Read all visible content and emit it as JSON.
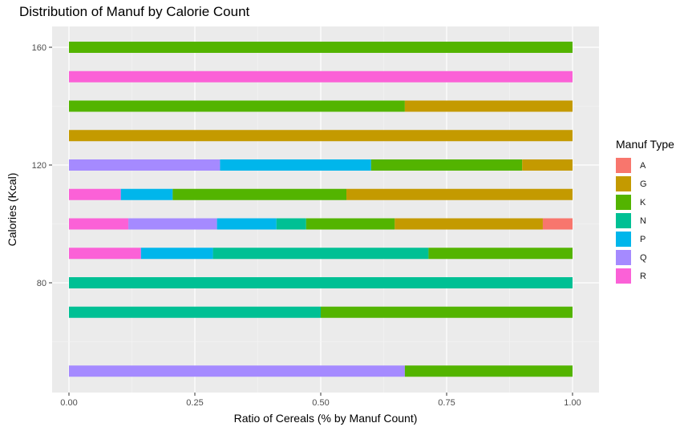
{
  "chart_data": {
    "type": "bar",
    "orientation": "horizontal",
    "stacked": true,
    "title": "Distribution of Manuf by Calorie Count",
    "xlabel": "Ratio of Cereals  (% by Manuf Count)",
    "ylabel": "Calories (Kcal)",
    "xlim": [
      0,
      1
    ],
    "ylim": [
      45,
      168
    ],
    "x_ticks": [
      0,
      0.25,
      0.5,
      0.75,
      1
    ],
    "x_tick_labels": [
      "0.00",
      "0.25",
      "0.50",
      "0.75",
      "1.00"
    ],
    "y_ticks": [
      80,
      120,
      160
    ],
    "y_tick_labels": [
      "80",
      "120",
      "160"
    ],
    "grid": true,
    "legend_position": "right",
    "legend_title": "Manuf Type",
    "categories": [
      "A",
      "G",
      "K",
      "N",
      "P",
      "Q",
      "R"
    ],
    "colors": {
      "A": "#F8766D",
      "G": "#C49A00",
      "K": "#53B400",
      "N": "#00C094",
      "P": "#00B6EB",
      "Q": "#A58AFF",
      "R": "#FB61D7"
    },
    "stack_order": [
      "R",
      "Q",
      "P",
      "N",
      "K",
      "G",
      "A"
    ],
    "bars": [
      {
        "calories": 50,
        "shares": {
          "Q": 0.667,
          "K": 0.333
        }
      },
      {
        "calories": 70,
        "shares": {
          "N": 0.5,
          "K": 0.5
        }
      },
      {
        "calories": 80,
        "shares": {
          "N": 1.0
        }
      },
      {
        "calories": 90,
        "shares": {
          "R": 0.143,
          "P": 0.143,
          "N": 0.428,
          "K": 0.286
        }
      },
      {
        "calories": 100,
        "shares": {
          "R": 0.118,
          "Q": 0.176,
          "P": 0.118,
          "N": 0.059,
          "K": 0.176,
          "G": 0.294,
          "A": 0.059
        }
      },
      {
        "calories": 110,
        "shares": {
          "R": 0.103,
          "P": 0.103,
          "K": 0.345,
          "G": 0.449
        }
      },
      {
        "calories": 120,
        "shares": {
          "Q": 0.3,
          "P": 0.3,
          "K": 0.3,
          "G": 0.1
        }
      },
      {
        "calories": 130,
        "shares": {
          "G": 1.0
        }
      },
      {
        "calories": 140,
        "shares": {
          "K": 0.667,
          "G": 0.333
        }
      },
      {
        "calories": 150,
        "shares": {
          "R": 1.0
        }
      },
      {
        "calories": 160,
        "shares": {
          "K": 1.0
        }
      }
    ]
  }
}
